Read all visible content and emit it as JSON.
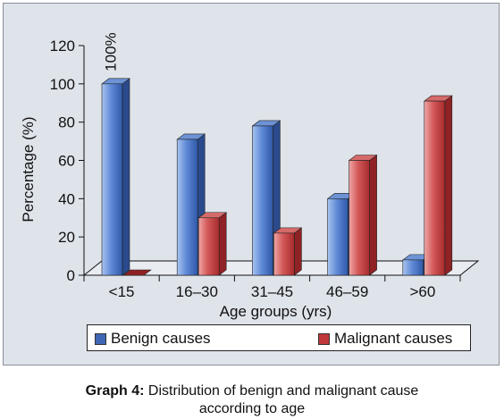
{
  "chart_data": {
    "type": "bar",
    "categories": [
      "<15",
      "16–30",
      "31–45",
      "46–59",
      ">60"
    ],
    "series": [
      {
        "name": "Benign causes",
        "values": [
          100,
          71,
          78,
          40,
          8
        ],
        "color": "#3f67b5"
      },
      {
        "name": "Malignant causes",
        "values": [
          0,
          30,
          22,
          60,
          91
        ],
        "color": "#c0393b"
      }
    ],
    "annotations": [
      {
        "category": "<15",
        "series": "Benign causes",
        "text": "100%"
      }
    ],
    "xlabel": "Age groups (yrs)",
    "ylabel": "Percentage (%)",
    "ylim": [
      0,
      120
    ],
    "yticks": [
      0,
      20,
      40,
      60,
      80,
      100,
      120
    ],
    "grid": false,
    "legend_position": "bottom",
    "style": "3d-bar"
  },
  "caption": {
    "label": "Graph 4:",
    "text_line1": "Distribution of benign and malignant cause",
    "text_line2": "according to age"
  }
}
